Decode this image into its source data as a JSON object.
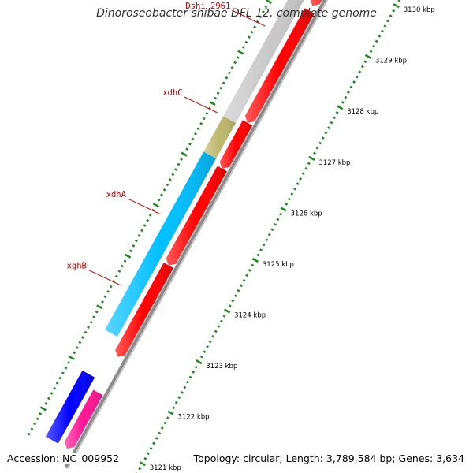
{
  "title": "Dinoroseobacter shibae DFL 12, complete genome",
  "accession": "Accession: NC_009952",
  "summary": "Topology: circular; Length: 3,789,584 bp; Genes: 3,634",
  "scale": {
    "unit": "kbp",
    "ticks": [
      {
        "value": 3121,
        "label": "3121 kbp"
      },
      {
        "value": 3122,
        "label": "3122 kbp"
      },
      {
        "value": 3123,
        "label": "3123 kbp"
      },
      {
        "value": 3124,
        "label": "3124 kbp"
      },
      {
        "value": 3125,
        "label": "3125 kbp"
      },
      {
        "value": 3126,
        "label": "3126 kbp"
      },
      {
        "value": 3127,
        "label": "3127 kbp"
      },
      {
        "value": 3128,
        "label": "3128 kbp"
      },
      {
        "value": 3129,
        "label": "3129 kbp"
      },
      {
        "value": 3130,
        "label": "3130 kbp"
      }
    ]
  },
  "genes": [
    {
      "name": "xghB",
      "label": "xghB",
      "start": 3122.7,
      "end": 3126.2,
      "color": "#00bfff",
      "track": "outer"
    },
    {
      "name": "xdhC",
      "label": "xdhC",
      "start": 3126.2,
      "end": 3126.9,
      "color": "#bdb76b",
      "track": "outer"
    },
    {
      "name": "Dshi_2961",
      "label": "Dshi_2961",
      "start": 3126.9,
      "end": 3129.7,
      "color": "#c8c8c8",
      "track": "outer"
    },
    {
      "name": "blue-gene",
      "label": "",
      "start": 3120.6,
      "end": 3121.9,
      "color": "#0000ff",
      "track": "outer"
    }
  ],
  "gene_labels": [
    {
      "text": "Dshi_2961",
      "at": 3128.6
    },
    {
      "text": "xdhC",
      "at": 3126.9
    },
    {
      "text": "xdhA",
      "at": 3124.9
    },
    {
      "text": "xghB",
      "at": 3123.5
    }
  ],
  "features": [
    {
      "start": 3122.4,
      "end": 3124.2,
      "color": "#ff0000",
      "track": "inner"
    },
    {
      "start": 3124.2,
      "end": 3126.1,
      "color": "#ff0000",
      "track": "inner"
    },
    {
      "start": 3126.1,
      "end": 3127.0,
      "color": "#ff0000",
      "track": "inner"
    },
    {
      "start": 3127.0,
      "end": 3129.2,
      "color": "#ff0000",
      "track": "inner"
    },
    {
      "start": 3129.3,
      "end": 3131.5,
      "color": "#ff0000",
      "track": "inner"
    },
    {
      "start": 3120.6,
      "end": 3121.7,
      "color": "#ff1493",
      "track": "inner"
    }
  ],
  "colors": {
    "backbone": "#8c8c8c",
    "tick": "#228b22",
    "label": "#cc0000",
    "tick_text": "#000000"
  }
}
